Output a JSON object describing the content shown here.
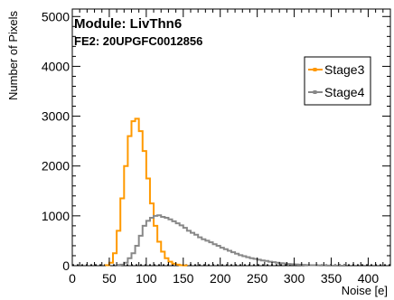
{
  "chart_data": {
    "type": "histogram",
    "annotations": [
      "Module: LivThn6",
      "FE2: 20UPGFC0012856"
    ],
    "xlabel": "Noise [e]",
    "ylabel": "Number of Pixels",
    "xlim": [
      0,
      430
    ],
    "ylim": [
      0,
      5150
    ],
    "x_ticks": [
      0,
      50,
      100,
      150,
      200,
      250,
      300,
      350,
      400
    ],
    "y_ticks": [
      0,
      1000,
      2000,
      3000,
      4000,
      5000
    ],
    "legend_position": "top-right",
    "bin_width": 5,
    "series": [
      {
        "name": "Stage3",
        "color": "#ff9900",
        "marker": "square",
        "bins": [
          [
            45,
            10
          ],
          [
            50,
            60
          ],
          [
            55,
            250
          ],
          [
            60,
            700
          ],
          [
            65,
            1350
          ],
          [
            70,
            2000
          ],
          [
            75,
            2600
          ],
          [
            80,
            2900
          ],
          [
            85,
            2950
          ],
          [
            90,
            2700
          ],
          [
            95,
            2300
          ],
          [
            100,
            1750
          ],
          [
            105,
            1250
          ],
          [
            110,
            800
          ],
          [
            115,
            480
          ],
          [
            120,
            280
          ],
          [
            125,
            150
          ],
          [
            130,
            80
          ],
          [
            135,
            40
          ],
          [
            140,
            20
          ],
          [
            145,
            10
          ],
          [
            150,
            5
          ]
        ]
      },
      {
        "name": "Stage4",
        "color": "#888888",
        "marker": "square",
        "bins": [
          [
            60,
            5
          ],
          [
            65,
            20
          ],
          [
            70,
            60
          ],
          [
            75,
            150
          ],
          [
            80,
            250
          ],
          [
            85,
            400
          ],
          [
            90,
            600
          ],
          [
            95,
            800
          ],
          [
            100,
            900
          ],
          [
            105,
            960
          ],
          [
            110,
            1000
          ],
          [
            115,
            1010
          ],
          [
            120,
            980
          ],
          [
            125,
            960
          ],
          [
            130,
            930
          ],
          [
            135,
            890
          ],
          [
            140,
            850
          ],
          [
            145,
            810
          ],
          [
            150,
            760
          ],
          [
            155,
            700
          ],
          [
            160,
            660
          ],
          [
            165,
            620
          ],
          [
            170,
            570
          ],
          [
            175,
            530
          ],
          [
            180,
            500
          ],
          [
            185,
            470
          ],
          [
            190,
            430
          ],
          [
            195,
            400
          ],
          [
            200,
            360
          ],
          [
            205,
            330
          ],
          [
            210,
            300
          ],
          [
            215,
            270
          ],
          [
            220,
            240
          ],
          [
            225,
            210
          ],
          [
            230,
            190
          ],
          [
            235,
            170
          ],
          [
            240,
            150
          ],
          [
            245,
            135
          ],
          [
            250,
            120
          ],
          [
            255,
            105
          ],
          [
            260,
            95
          ],
          [
            265,
            80
          ],
          [
            270,
            70
          ],
          [
            275,
            60
          ],
          [
            280,
            50
          ],
          [
            285,
            45
          ],
          [
            290,
            35
          ],
          [
            295,
            30
          ],
          [
            300,
            25
          ],
          [
            305,
            20
          ],
          [
            310,
            15
          ],
          [
            315,
            12
          ],
          [
            320,
            10
          ],
          [
            325,
            8
          ],
          [
            330,
            6
          ],
          [
            335,
            5
          ],
          [
            340,
            4
          ],
          [
            345,
            3
          ],
          [
            350,
            2
          ],
          [
            355,
            2
          ],
          [
            360,
            1
          ],
          [
            365,
            1
          ]
        ]
      }
    ]
  }
}
